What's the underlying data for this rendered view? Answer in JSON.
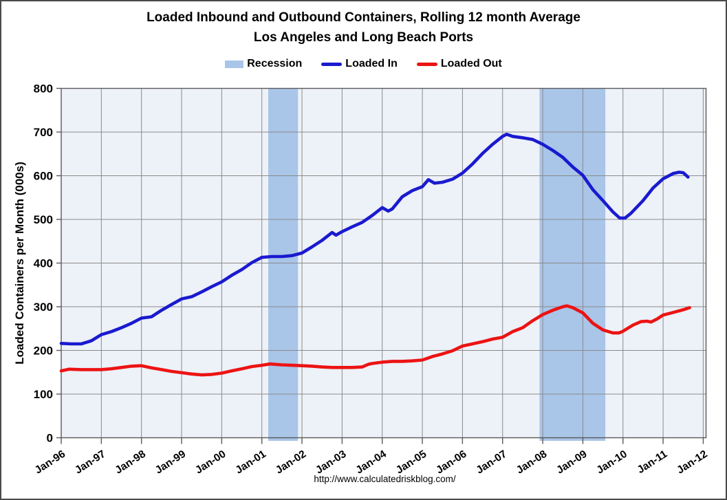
{
  "title": {
    "line1": "Loaded Inbound and Outbound Containers, Rolling 12 month Average",
    "line2": "Los Angeles and Long Beach Ports"
  },
  "legend": [
    {
      "label": "Recession",
      "type": "band",
      "color": "#A9C5E8"
    },
    {
      "label": "Loaded In",
      "type": "line",
      "color": "#1A1ACF"
    },
    {
      "label": "Loaded Out",
      "type": "line",
      "color": "#EC1313"
    }
  ],
  "footer": {
    "url": "http://www.calculatedriskblog.com/"
  },
  "colors": {
    "plot_background": "#EDF1F8",
    "recession_band": "#A9C5E8",
    "gridline": "#8a8a8a",
    "plot_border": "#595959",
    "loaded_in": "#1A1ACF",
    "loaded_out": "#EC1313",
    "text": "#000000"
  },
  "chart_data": {
    "type": "line",
    "title": "Loaded Inbound and Outbound Containers, Rolling 12 month Average — Los Angeles and Long Beach Ports",
    "xlabel": "",
    "ylabel": "Loaded Containers per Month (000s)",
    "x_unit": "years since Jan-1996",
    "xlim": [
      0,
      16.07
    ],
    "ylim": [
      0,
      800
    ],
    "grid": true,
    "legend_position": "top-center",
    "y_ticks": [
      0,
      100,
      200,
      300,
      400,
      500,
      600,
      700,
      800
    ],
    "x_tick_labels": [
      "Jan-96",
      "Jan-97",
      "Jan-98",
      "Jan-99",
      "Jan-00",
      "Jan-01",
      "Jan-02",
      "Jan-03",
      "Jan-04",
      "Jan-05",
      "Jan-06",
      "Jan-07",
      "Jan-08",
      "Jan-09",
      "Jan-10",
      "Jan-11",
      "Jan-12"
    ],
    "recession_bands": [
      {
        "from": 5.16,
        "to": 5.9
      },
      {
        "from": 11.92,
        "to": 13.56
      }
    ],
    "series": [
      {
        "name": "Loaded In",
        "color": "#1A1ACF",
        "points": [
          [
            0,
            216
          ],
          [
            0.25,
            215
          ],
          [
            0.5,
            215
          ],
          [
            0.75,
            222
          ],
          [
            1,
            236
          ],
          [
            1.25,
            243
          ],
          [
            1.5,
            252
          ],
          [
            1.75,
            262
          ],
          [
            2,
            274
          ],
          [
            2.25,
            277
          ],
          [
            2.5,
            292
          ],
          [
            2.75,
            305
          ],
          [
            3,
            318
          ],
          [
            3.25,
            323
          ],
          [
            3.5,
            334
          ],
          [
            3.75,
            346
          ],
          [
            4,
            357
          ],
          [
            4.25,
            372
          ],
          [
            4.5,
            385
          ],
          [
            4.75,
            401
          ],
          [
            5,
            413
          ],
          [
            5.25,
            415
          ],
          [
            5.5,
            415
          ],
          [
            5.75,
            417
          ],
          [
            6,
            423
          ],
          [
            6.25,
            437
          ],
          [
            6.5,
            452
          ],
          [
            6.75,
            470
          ],
          [
            6.85,
            464
          ],
          [
            7,
            472
          ],
          [
            7.25,
            483
          ],
          [
            7.5,
            493
          ],
          [
            7.75,
            509
          ],
          [
            8,
            527
          ],
          [
            8.15,
            519
          ],
          [
            8.25,
            524
          ],
          [
            8.5,
            552
          ],
          [
            8.75,
            566
          ],
          [
            9,
            575
          ],
          [
            9.15,
            591
          ],
          [
            9.3,
            583
          ],
          [
            9.5,
            585
          ],
          [
            9.75,
            592
          ],
          [
            10,
            606
          ],
          [
            10.25,
            627
          ],
          [
            10.5,
            651
          ],
          [
            10.75,
            672
          ],
          [
            11,
            690
          ],
          [
            11.1,
            695
          ],
          [
            11.25,
            690
          ],
          [
            11.5,
            687
          ],
          [
            11.75,
            683
          ],
          [
            12,
            672
          ],
          [
            12.25,
            658
          ],
          [
            12.5,
            642
          ],
          [
            12.75,
            620
          ],
          [
            13,
            601
          ],
          [
            13.25,
            568
          ],
          [
            13.5,
            543
          ],
          [
            13.75,
            517
          ],
          [
            13.92,
            503
          ],
          [
            14.05,
            503
          ],
          [
            14.2,
            514
          ],
          [
            14.5,
            543
          ],
          [
            14.75,
            572
          ],
          [
            15,
            593
          ],
          [
            15.25,
            605
          ],
          [
            15.4,
            608
          ],
          [
            15.5,
            607
          ],
          [
            15.62,
            597
          ]
        ]
      },
      {
        "name": "Loaded Out",
        "color": "#EC1313",
        "points": [
          [
            0,
            153
          ],
          [
            0.2,
            157
          ],
          [
            0.5,
            156
          ],
          [
            0.75,
            156
          ],
          [
            1,
            156
          ],
          [
            1.25,
            158
          ],
          [
            1.5,
            161
          ],
          [
            1.75,
            164
          ],
          [
            2,
            165
          ],
          [
            2.25,
            160
          ],
          [
            2.5,
            156
          ],
          [
            2.75,
            152
          ],
          [
            3,
            149
          ],
          [
            3.25,
            146
          ],
          [
            3.5,
            144
          ],
          [
            3.75,
            145
          ],
          [
            4,
            148
          ],
          [
            4.25,
            153
          ],
          [
            4.5,
            158
          ],
          [
            4.75,
            163
          ],
          [
            5,
            166
          ],
          [
            5.2,
            169
          ],
          [
            5.5,
            167
          ],
          [
            5.75,
            166
          ],
          [
            6,
            165
          ],
          [
            6.25,
            164
          ],
          [
            6.5,
            162
          ],
          [
            6.75,
            161
          ],
          [
            7,
            161
          ],
          [
            7.25,
            161
          ],
          [
            7.5,
            162
          ],
          [
            7.65,
            168
          ],
          [
            7.75,
            170
          ],
          [
            8,
            173
          ],
          [
            8.25,
            175
          ],
          [
            8.5,
            175
          ],
          [
            8.75,
            176
          ],
          [
            9,
            178
          ],
          [
            9.25,
            186
          ],
          [
            9.5,
            192
          ],
          [
            9.75,
            199
          ],
          [
            10,
            210
          ],
          [
            10.25,
            215
          ],
          [
            10.5,
            220
          ],
          [
            10.75,
            226
          ],
          [
            11,
            230
          ],
          [
            11.25,
            243
          ],
          [
            11.5,
            252
          ],
          [
            11.75,
            268
          ],
          [
            12,
            282
          ],
          [
            12.25,
            292
          ],
          [
            12.5,
            300
          ],
          [
            12.6,
            302
          ],
          [
            12.75,
            298
          ],
          [
            13,
            286
          ],
          [
            13.25,
            262
          ],
          [
            13.5,
            247
          ],
          [
            13.75,
            240
          ],
          [
            13.9,
            240
          ],
          [
            14,
            244
          ],
          [
            14.25,
            258
          ],
          [
            14.45,
            266
          ],
          [
            14.6,
            267
          ],
          [
            14.7,
            265
          ],
          [
            14.85,
            272
          ],
          [
            15,
            281
          ],
          [
            15.25,
            287
          ],
          [
            15.5,
            293
          ],
          [
            15.66,
            298
          ]
        ]
      }
    ]
  }
}
